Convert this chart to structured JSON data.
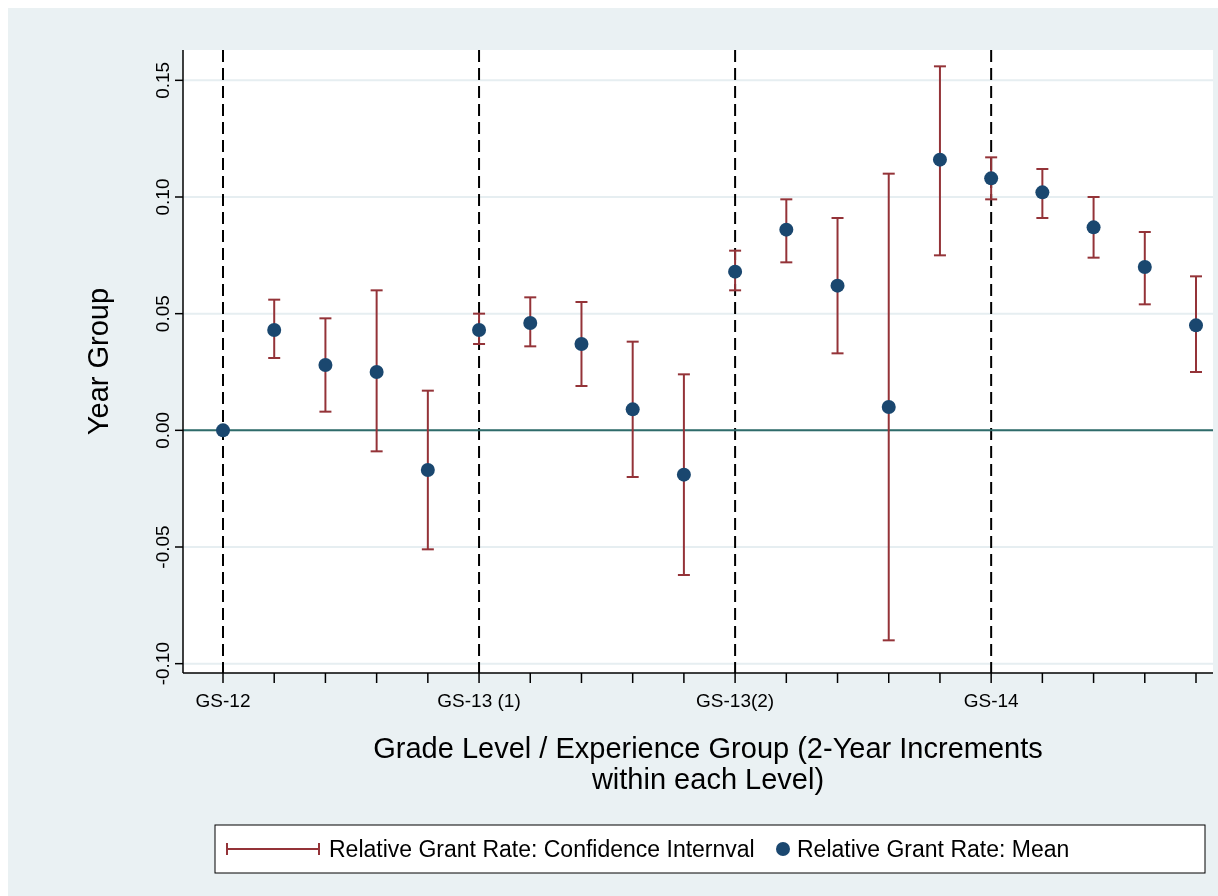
{
  "chart_data": {
    "type": "scatter",
    "xlabel": "Grade Level / Experience Group (2-Year Increments\nwithin each Level)",
    "ylabel": "Year Group",
    "categories": [
      "GS-12",
      null,
      null,
      null,
      null,
      "GS-13 (1)",
      null,
      null,
      null,
      null,
      "GS-13(2)",
      null,
      null,
      null,
      null,
      "GS-14",
      null,
      null,
      null,
      null
    ],
    "ylim": [
      -0.104,
      0.163
    ],
    "yticks": [
      {
        "value": -0.1,
        "label": "-0.10"
      },
      {
        "value": -0.05,
        "label": "-0.05"
      },
      {
        "value": 0,
        "label": "0.00"
      },
      {
        "value": 0.05,
        "label": "0.05"
      },
      {
        "value": 0.1,
        "label": "0.10"
      },
      {
        "value": 0.15,
        "label": "0.15"
      }
    ],
    "grid": "y",
    "legend": "bottom",
    "ref_lines": [
      {
        "axis": "x",
        "value": "GS-12",
        "color": "#000000",
        "line_style": "dashed"
      },
      {
        "axis": "x",
        "value": "GS-13 (1)",
        "color": "#000000",
        "line_style": "dashed"
      },
      {
        "axis": "x",
        "value": "GS-13(2)",
        "color": "#000000",
        "line_style": "dashed"
      },
      {
        "axis": "x",
        "value": "GS-14",
        "color": "#000000",
        "line_style": "dashed"
      },
      {
        "axis": "y",
        "value": 0,
        "color": "#2f6b6a",
        "line_style": "solid"
      }
    ],
    "series": [
      {
        "name": "Relative Grant Rate: Mean",
        "color": "#1a476f",
        "marker": "circle",
        "values": [
          0,
          0.043,
          0.028,
          0.025,
          -0.017,
          0.043,
          0.046,
          0.037,
          0.009,
          -0.019,
          0.068,
          0.086,
          0.062,
          0.01,
          0.116,
          0.108,
          0.102,
          0.087,
          0.07,
          0.045
        ],
        "errors": [
          null,
          [
            0.031,
            0.056
          ],
          [
            0.008,
            0.048
          ],
          [
            -0.009,
            0.06
          ],
          [
            -0.051,
            0.017
          ],
          [
            0.037,
            0.05
          ],
          [
            0.036,
            0.057
          ],
          [
            0.019,
            0.055
          ],
          [
            -0.02,
            0.038
          ],
          [
            -0.062,
            0.024
          ],
          [
            0.06,
            0.077
          ],
          [
            0.072,
            0.099
          ],
          [
            0.033,
            0.091
          ],
          [
            -0.09,
            0.11
          ],
          [
            0.075,
            0.156
          ],
          [
            0.099,
            0.117
          ],
          [
            0.091,
            0.112
          ],
          [
            0.074,
            0.1
          ],
          [
            0.054,
            0.085
          ],
          [
            0.025,
            0.066
          ]
        ]
      }
    ],
    "annotations": [
      "Relative Grant Rate: Confidence Internval"
    ]
  }
}
